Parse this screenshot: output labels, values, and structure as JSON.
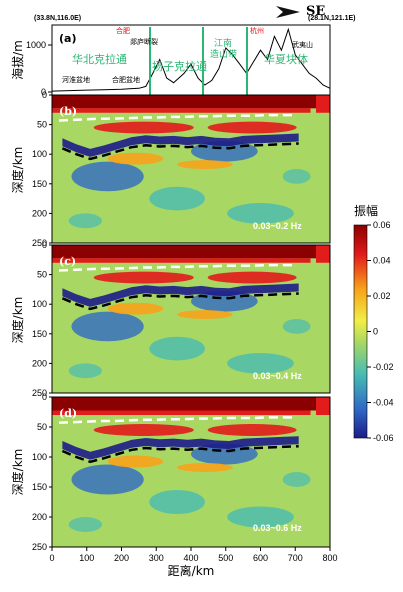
{
  "header": {
    "start_coord": "(33.8N,116.0E)",
    "end_coord": "(28.1N,121.1E)",
    "direction": "SE"
  },
  "elevation_panel": {
    "panel_label": "(a)",
    "ylabel": "海拔/m",
    "yticks": [
      "1000",
      "0"
    ],
    "ylim": [
      0,
      1400
    ],
    "cities": [
      "合肥",
      "杭州"
    ],
    "place_labels": [
      "郯庐断裂",
      "武夷山",
      "河淮盆地",
      "合肥盆地"
    ],
    "block_labels": [
      "华北克拉通",
      "扬子克拉通",
      "江南造山带",
      "华夏块体"
    ],
    "boundaries_km": [
      280,
      435,
      565
    ]
  },
  "panels": [
    {
      "label": "(b)",
      "freq": "0.03~0.2 Hz"
    },
    {
      "label": "(c)",
      "freq": "0.03~0.4 Hz"
    },
    {
      "label": "(d)",
      "freq": "0.03~0.6 Hz"
    }
  ],
  "axes": {
    "ylabel": "深度/km",
    "yticks": [
      "0",
      "50",
      "100",
      "150",
      "200",
      "250"
    ],
    "xlabel": "距离/km",
    "xticks": [
      "0",
      "100",
      "200",
      "300",
      "400",
      "500",
      "600",
      "700",
      "800"
    ]
  },
  "colorbar": {
    "title": "振幅",
    "ticks": [
      "0.06",
      "0.04",
      "0.02",
      "0",
      "-0.02",
      "-0.04",
      "-0.06"
    ],
    "colors": [
      "#8b0000",
      "#e21b1b",
      "#f7a21b",
      "#f2ee46",
      "#a8d863",
      "#48bcb3",
      "#2f6bc4",
      "#1c1c8a"
    ]
  },
  "chart_data": {
    "type": "heatmap",
    "xlim": [
      0,
      800
    ],
    "ylim": [
      0,
      250
    ],
    "elevation_profile": {
      "x": [
        0,
        50,
        100,
        150,
        200,
        250,
        270,
        290,
        310,
        330,
        350,
        380,
        400,
        420,
        440,
        460,
        480,
        500,
        520,
        540,
        560,
        580,
        600,
        620,
        640,
        660,
        680,
        700,
        720,
        740,
        760,
        780,
        800
      ],
      "y": [
        20,
        30,
        40,
        50,
        60,
        80,
        120,
        400,
        700,
        300,
        200,
        400,
        600,
        300,
        150,
        250,
        500,
        950,
        800,
        600,
        400,
        650,
        900,
        700,
        1200,
        900,
        1350,
        800,
        600,
        400,
        300,
        150,
        80
      ]
    },
    "moho_shallow": {
      "x": [
        20,
        60,
        100,
        140,
        180,
        220,
        260,
        300,
        340,
        380,
        420,
        460,
        500,
        540,
        580,
        620,
        660,
        700
      ],
      "y": [
        43,
        42,
        41,
        40,
        40,
        39,
        38,
        38,
        37,
        37,
        36,
        36,
        35,
        35,
        35,
        34,
        34,
        34
      ]
    },
    "moho_deep": {
      "x": [
        30,
        70,
        110,
        150,
        190,
        230,
        270,
        310,
        350,
        390,
        430,
        470,
        510,
        550,
        590,
        630,
        670,
        710
      ],
      "y": [
        90,
        100,
        108,
        102,
        95,
        88,
        85,
        87,
        86,
        88,
        86,
        89,
        90,
        86,
        85,
        84,
        83,
        82
      ]
    },
    "colorbar_range": [
      -0.06,
      0.06
    ]
  }
}
